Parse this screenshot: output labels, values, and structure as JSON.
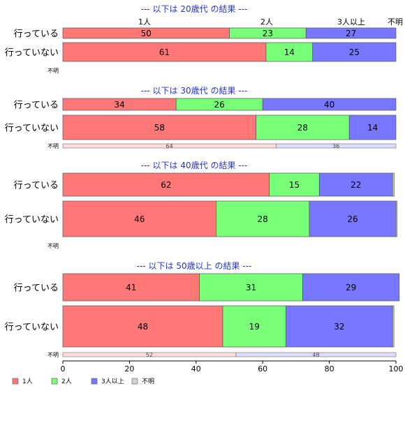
{
  "legend": [
    {
      "label": "1人",
      "color": "#ff7777"
    },
    {
      "label": "2人",
      "color": "#77ff77"
    },
    {
      "label": "3人以上",
      "color": "#7777ff"
    },
    {
      "label": "不明",
      "color": "#d3d3d3"
    }
  ],
  "chart_data": {
    "type": "bar",
    "orientation": "horizontal-stacked-percent",
    "xlim": [
      0,
      100
    ],
    "x_ticks": [
      0,
      20,
      40,
      60,
      80,
      100
    ],
    "categories": [
      "1人",
      "2人",
      "3人以上",
      "不明"
    ],
    "groups": [
      {
        "title": "--- 以下は 20歳代 の結果 ---",
        "rows": [
          {
            "label": "行っている",
            "values": [
              50,
              23,
              27,
              0
            ]
          },
          {
            "label": "行っていない",
            "values": [
              61,
              14,
              25,
              0
            ]
          },
          {
            "label": "不明",
            "values": []
          }
        ]
      },
      {
        "title": "--- 以下は 30歳代 の結果 ---",
        "rows": [
          {
            "label": "行っている",
            "values": [
              34,
              26,
              40,
              0
            ]
          },
          {
            "label": "行っていない",
            "values": [
              58,
              28,
              14,
              0
            ]
          },
          {
            "label": "不明",
            "values": [
              64,
              0,
              36,
              0
            ]
          }
        ]
      },
      {
        "title": "--- 以下は 40歳代 の結果 ---",
        "rows": [
          {
            "label": "行っている",
            "values": [
              62,
              15,
              22,
              0.5
            ]
          },
          {
            "label": "行っていない",
            "values": [
              46,
              28,
              26,
              0.3
            ]
          },
          {
            "label": "不明",
            "values": []
          }
        ]
      },
      {
        "title": "--- 以下は 50歳以上 の結果 ---",
        "rows": [
          {
            "label": "行っている",
            "values": [
              41,
              31,
              29,
              0
            ]
          },
          {
            "label": "行っていない",
            "values": [
              48,
              19,
              32,
              0.4
            ]
          },
          {
            "label": "不明",
            "values": [
              52,
              0,
              48,
              0
            ]
          }
        ]
      }
    ]
  }
}
